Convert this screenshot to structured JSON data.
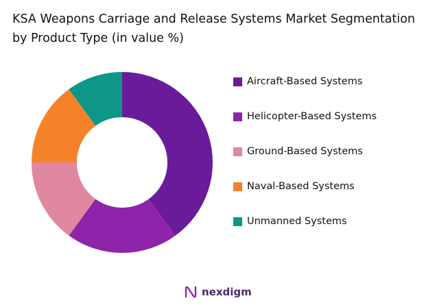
{
  "chart_data": {
    "type": "pie",
    "donut": true,
    "title": "KSA Weapons Carriage and Release Systems Market Segmentation by Product Type (in value %)",
    "categories": [
      "Aircraft-Based Systems",
      "Helicopter-Based Systems",
      "Ground-Based Systems",
      "Naval-Based Systems",
      "Unmanned Systems"
    ],
    "values": [
      40,
      20,
      15,
      15,
      10
    ],
    "colors": [
      "#6a1b9a",
      "#8e24aa",
      "#e088a0",
      "#f5822a",
      "#0e9688"
    ],
    "legend_position": "right"
  },
  "brand": {
    "logo_text": "nexdigm",
    "color": "#4a2a6a"
  }
}
